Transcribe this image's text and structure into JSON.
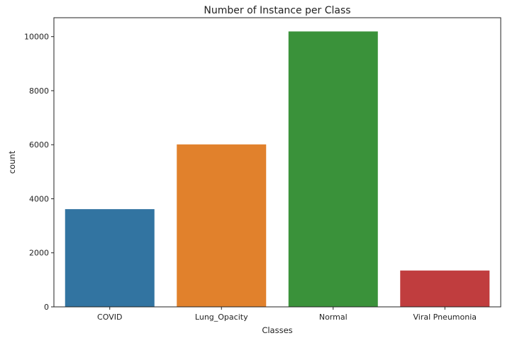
{
  "chart_data": {
    "type": "bar",
    "title": "Number of Instance per Class",
    "xlabel": "Classes",
    "ylabel": "count",
    "categories": [
      "COVID",
      "Lung_Opacity",
      "Normal",
      "Viral Pneumonia"
    ],
    "values": [
      3616,
      6012,
      10192,
      1345
    ],
    "colors": [
      "#3274a1",
      "#e1812c",
      "#3a923a",
      "#c03d3e"
    ],
    "ylim": [
      0,
      10700
    ],
    "yticks": [
      0,
      2000,
      4000,
      6000,
      8000,
      10000
    ],
    "grid": false,
    "legend": "none"
  }
}
